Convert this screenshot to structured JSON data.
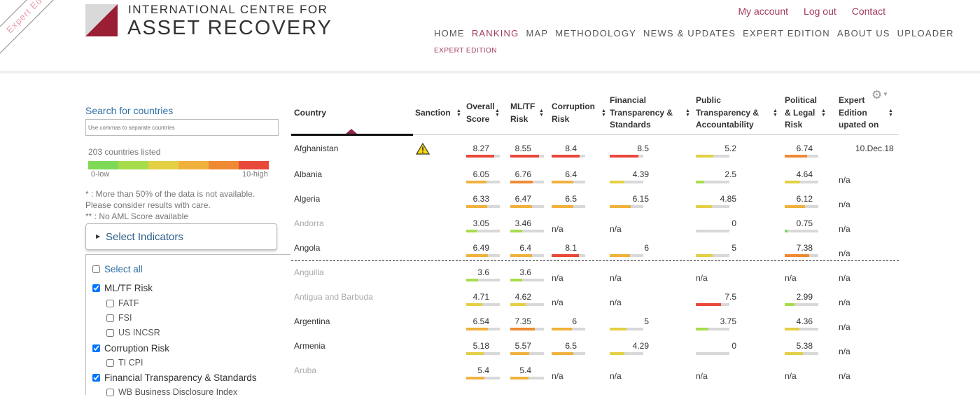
{
  "ribbon": "Expert Ed",
  "logo": {
    "line1": "INTERNATIONAL CENTRE FOR",
    "line2": "ASSET RECOVERY"
  },
  "toplinks": [
    "My account",
    "Log out",
    "Contact"
  ],
  "nav": [
    "HOME",
    "RANKING",
    "MAP",
    "METHODOLOGY",
    "NEWS & UPDATES",
    "EXPERT EDITION",
    "ABOUT US",
    "UPLOADER"
  ],
  "nav_active": "RANKING",
  "subnav": "EXPERT EDITION",
  "sidebar": {
    "search_label": "Search for countries",
    "search_placeholder": "Use commas to separate countries",
    "count": "203 countries listed",
    "scale_colors": [
      "#7ed957",
      "#a7dd4c",
      "#e3d044",
      "#f0b23c",
      "#ee8a33",
      "#e8493a"
    ],
    "scale_low": "0-low",
    "scale_high": "10-high",
    "note1": "* : More than 50% of the data is not available. Please consider results with care.",
    "note2": "** : No AML Score available",
    "select_indicators": "Select Indicators",
    "select_all": "Select all",
    "indicators": [
      {
        "label": "ML/TF Risk",
        "checked": true,
        "level": 0
      },
      {
        "label": "FATF",
        "checked": false,
        "level": 1
      },
      {
        "label": "FSI",
        "checked": false,
        "level": 1
      },
      {
        "label": "US INCSR",
        "checked": false,
        "level": 1
      },
      {
        "label": "Corruption Risk",
        "checked": true,
        "level": 0
      },
      {
        "label": "TI CPI",
        "checked": false,
        "level": 1
      },
      {
        "label": "Financial Transparency & Standards",
        "checked": true,
        "level": 0
      },
      {
        "label": "WB Business Disclosure Index",
        "checked": false,
        "level": 1
      }
    ]
  },
  "table": {
    "headers": [
      [
        "Country"
      ],
      [
        "Sanction"
      ],
      [
        "Overall",
        "Score"
      ],
      [
        "ML/TF",
        "Risk"
      ],
      [
        "Corruption",
        "Risk"
      ],
      [
        "Financial",
        "Transparency &",
        "Standards"
      ],
      [
        "Public",
        "Transparency &",
        "Accountability"
      ],
      [
        "Political",
        "& Legal",
        "Risk"
      ],
      [
        "Expert",
        "Edition",
        "upated on"
      ]
    ],
    "rows": [
      {
        "name": "Afghanistan",
        "grey": false,
        "sanction": "warning-icon",
        "v": [
          "8.27",
          "8.55",
          "8.4",
          "8.5",
          "5.2",
          "6.74"
        ],
        "date": "10.Dec.18"
      },
      {
        "name": "Albania",
        "grey": false,
        "v": [
          "6.05",
          "6.76",
          "6.4",
          "4.39",
          "2.5",
          "4.64"
        ],
        "date": "n/a"
      },
      {
        "name": "Algeria",
        "grey": false,
        "v": [
          "6.33",
          "6.47",
          "6.5",
          "6.15",
          "4.85",
          "6.12"
        ],
        "date": "n/a"
      },
      {
        "name": "Andorra",
        "grey": true,
        "v": [
          "3.05",
          "3.46",
          "n/a",
          "n/a",
          "0",
          "0.75"
        ],
        "date": "n/a"
      },
      {
        "name": "Angola",
        "grey": false,
        "v": [
          "6.49",
          "6.4",
          "8.1",
          "6",
          "5",
          "7.38"
        ],
        "date": "n/a"
      },
      {
        "name": "Anguilla",
        "grey": true,
        "v": [
          "3.6",
          "3.6",
          "n/a",
          "n/a",
          "n/a",
          "n/a"
        ],
        "date": "n/a"
      },
      {
        "name": "Antigua and Barbuda",
        "grey": true,
        "v": [
          "4.71",
          "4.62",
          "n/a",
          "n/a",
          "7.5",
          "2.99"
        ],
        "date": "n/a"
      },
      {
        "name": "Argentina",
        "grey": false,
        "v": [
          "6.54",
          "7.35",
          "6",
          "5",
          "3.75",
          "4.36"
        ],
        "date": "n/a"
      },
      {
        "name": "Armenia",
        "grey": false,
        "v": [
          "5.18",
          "5.57",
          "6.5",
          "4.29",
          "0",
          "5.38"
        ],
        "date": "n/a"
      },
      {
        "name": "Aruba",
        "grey": true,
        "v": [
          "5.4",
          "5.4",
          "n/a",
          "n/a",
          "n/a",
          "n/a"
        ],
        "date": "n/a"
      }
    ]
  }
}
